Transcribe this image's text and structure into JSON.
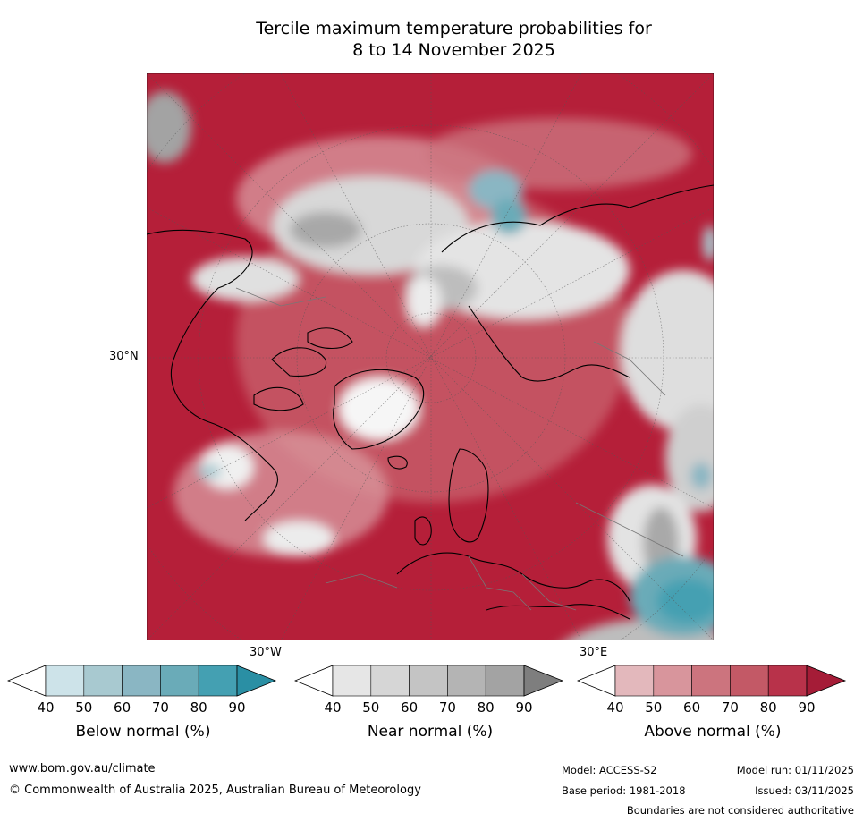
{
  "title_line1": "Tercile maximum temperature probabilities for",
  "title_line2": "8 to 14 November 2025",
  "map_labels": {
    "lat": "30°N",
    "lon_left": "30°W",
    "lon_right": "30°E"
  },
  "colorbars": [
    {
      "label": "Below normal (%)",
      "ticks": [
        "40",
        "50",
        "60",
        "70",
        "80",
        "90"
      ],
      "colors": [
        "#ffffff",
        "#cde3e9",
        "#a8c9d0",
        "#8ab6c3",
        "#6aabb8",
        "#44a0b2",
        "#2a8fa4"
      ]
    },
    {
      "label": "Near normal (%)",
      "ticks": [
        "40",
        "50",
        "60",
        "70",
        "80",
        "90"
      ],
      "colors": [
        "#ffffff",
        "#e6e6e6",
        "#d6d6d6",
        "#c4c4c4",
        "#b4b4b4",
        "#a3a3a3",
        "#7e7e7e"
      ]
    },
    {
      "label": "Above normal (%)",
      "ticks": [
        "40",
        "50",
        "60",
        "70",
        "80",
        "90"
      ],
      "colors": [
        "#ffffff",
        "#e3b8bc",
        "#d8959c",
        "#cc747e",
        "#c35966",
        "#b8324a",
        "#a51c37"
      ]
    }
  ],
  "footer": {
    "website": "www.bom.gov.au/climate",
    "copyright": "© Commonwealth of Australia 2025, Australian Bureau of Meteorology",
    "model": "Model: ACCESS-S2",
    "model_run": "Model run: 01/11/2025",
    "base_period": "Base period: 1981-2018",
    "issued": "Issued: 03/11/2025",
    "disclaimer": "Boundaries are not considered authoritative"
  }
}
